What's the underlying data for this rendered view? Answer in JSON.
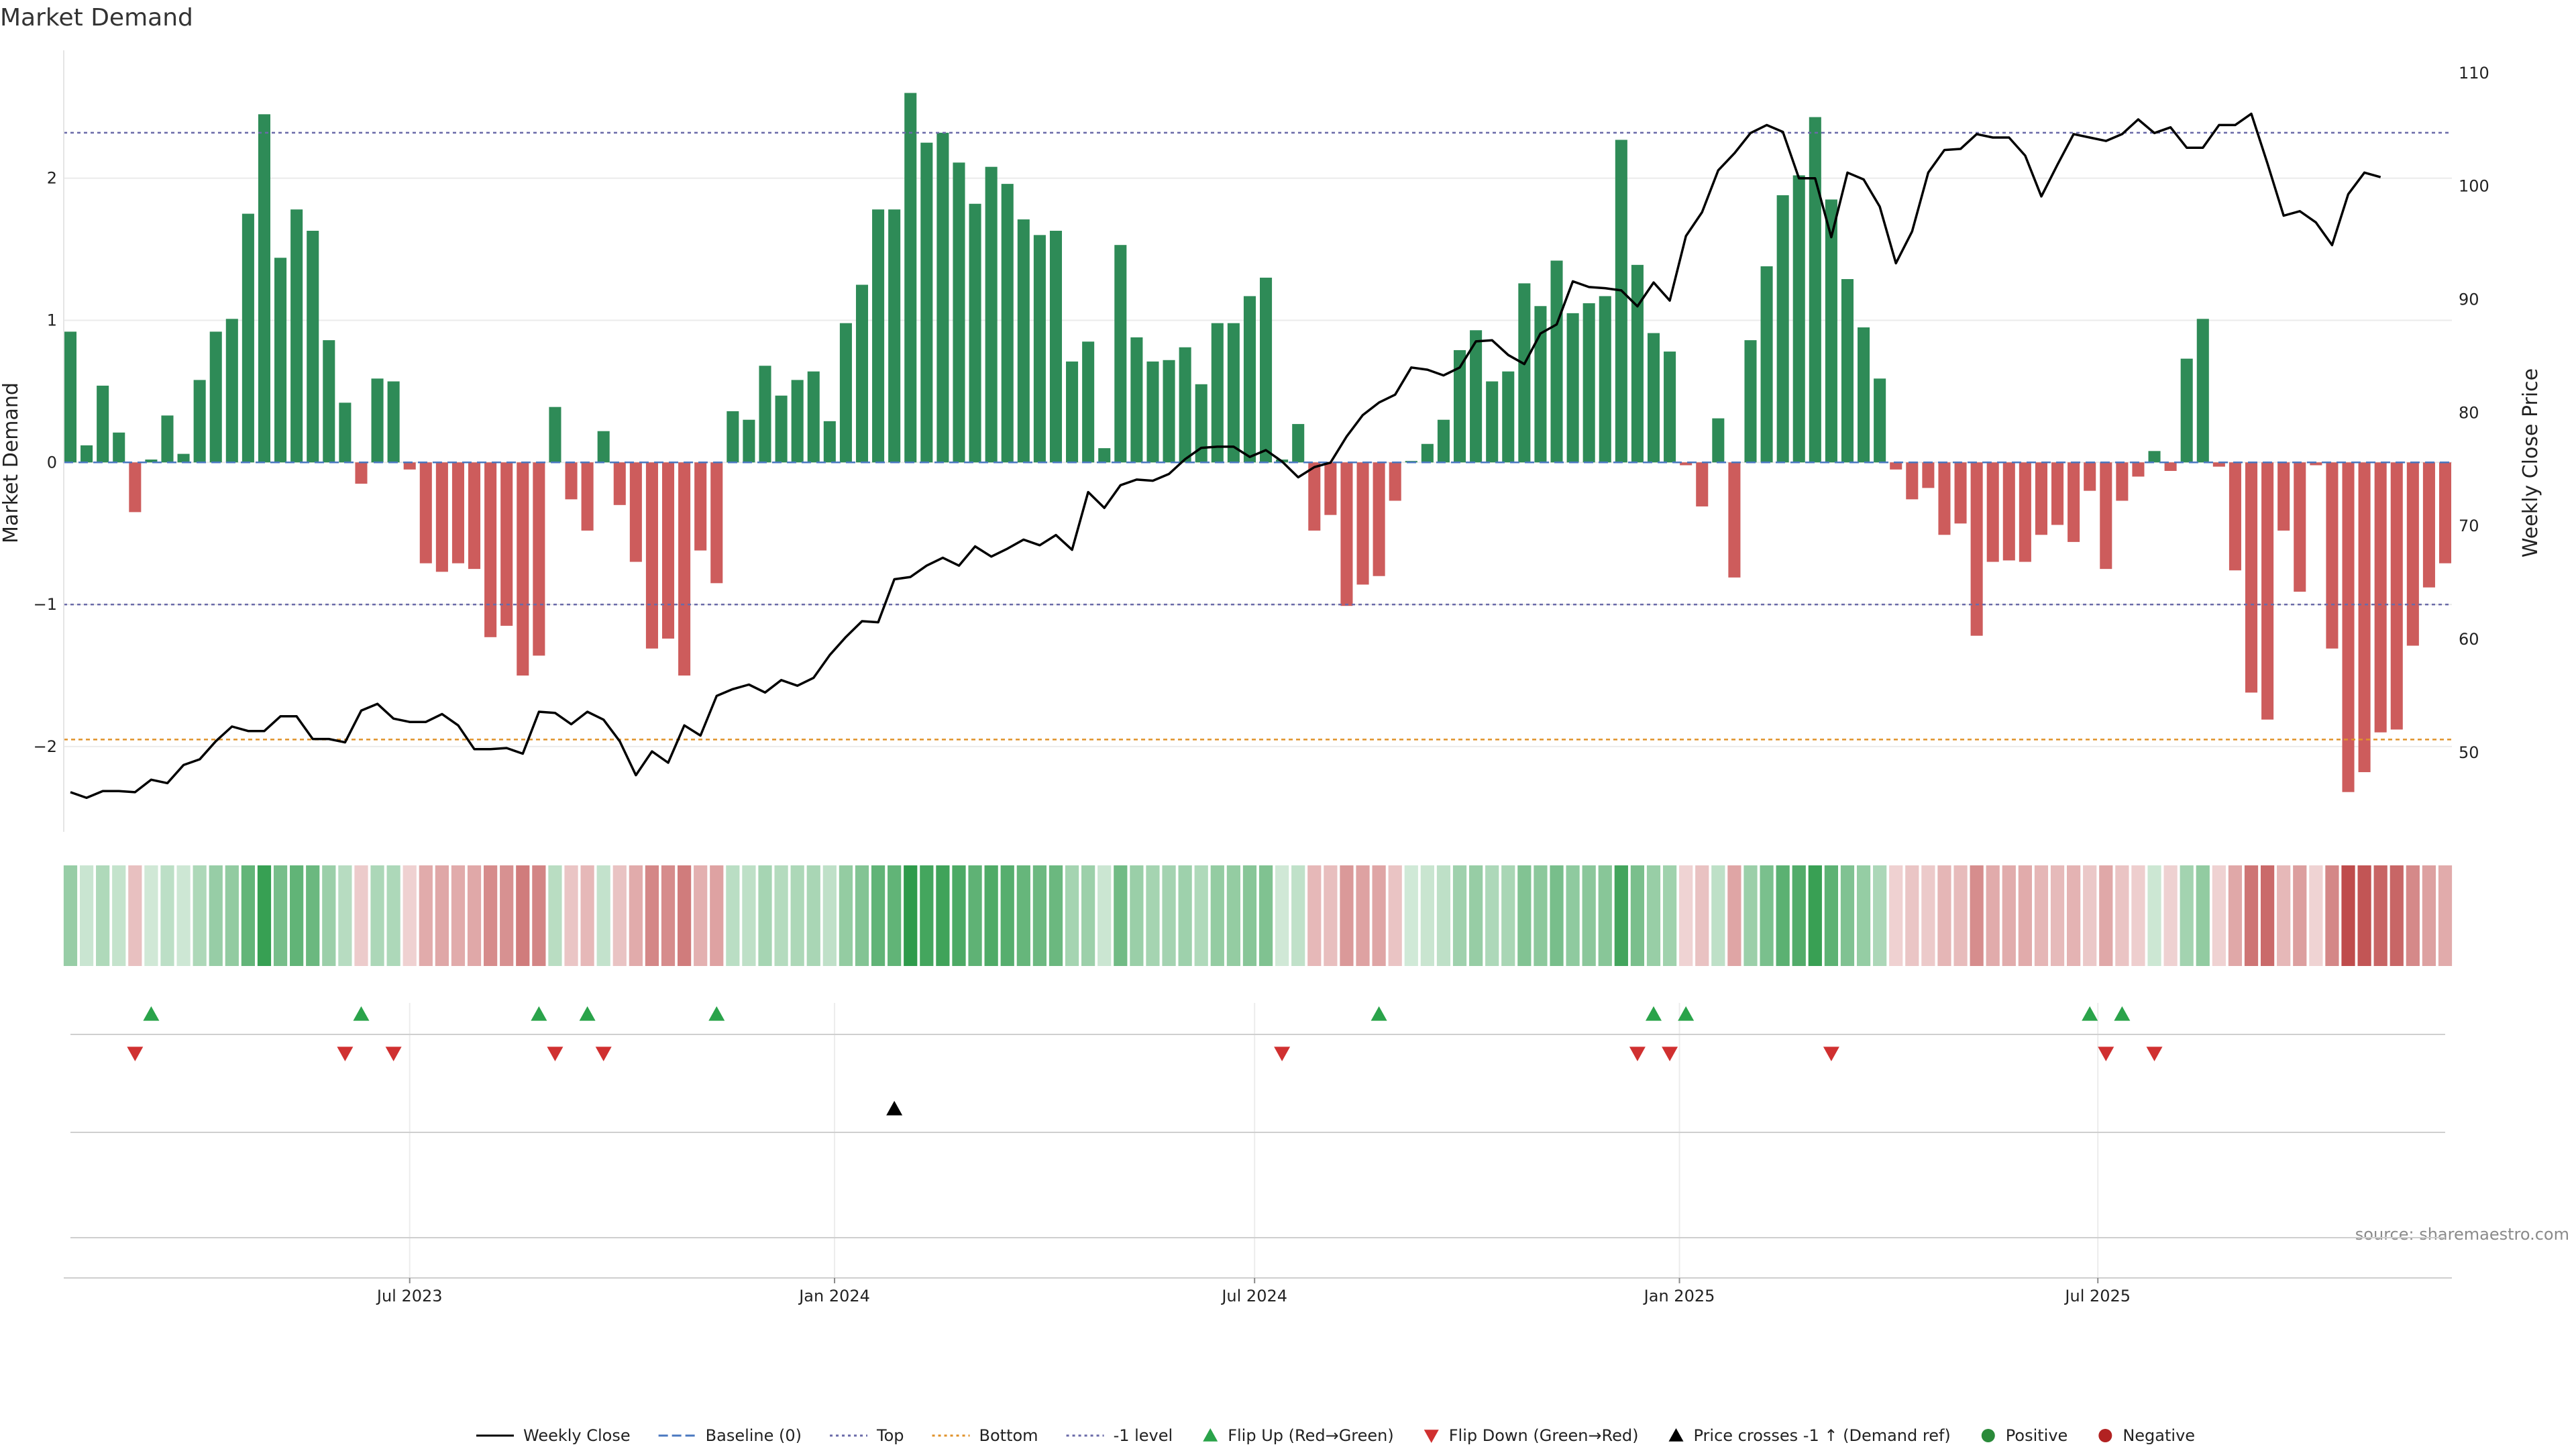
{
  "chart_data": {
    "type": "bar",
    "title": "Market Demand",
    "ylabel_left": "Market Demand",
    "ylabel_right": "Weekly Close Price",
    "ylim_left": [
      -2.6,
      2.9
    ],
    "ylim_right": [
      43,
      112
    ],
    "yticks_left": [
      {
        "value": 2,
        "label": "2"
      },
      {
        "value": 1,
        "label": "1"
      },
      {
        "value": 0,
        "label": "0"
      },
      {
        "value": -1,
        "label": "−1"
      },
      {
        "value": -2,
        "label": "−2"
      }
    ],
    "yticks_right": [
      {
        "value": 110,
        "label": "110"
      },
      {
        "value": 100,
        "label": "100"
      },
      {
        "value": 90,
        "label": "90"
      },
      {
        "value": 80,
        "label": "80"
      },
      {
        "value": 70,
        "label": "70"
      },
      {
        "value": 60,
        "label": "60"
      },
      {
        "value": 50,
        "label": "50"
      }
    ],
    "xticks": [
      {
        "week": 21,
        "label": "Jul 2023"
      },
      {
        "week": 47.3,
        "label": "Jan 2024"
      },
      {
        "week": 73.3,
        "label": "Jul 2024"
      },
      {
        "week": 99.6,
        "label": "Jan 2025"
      },
      {
        "week": 125.5,
        "label": "Jul 2025"
      }
    ],
    "reference_lines": {
      "top": 2.32,
      "bottom": -1.95,
      "minus_one": -1.0,
      "baseline": 0
    },
    "demand": [
      0.92,
      0.12,
      0.54,
      0.21,
      -0.35,
      0.02,
      0.33,
      0.06,
      0.58,
      0.92,
      1.01,
      1.75,
      2.45,
      1.44,
      1.78,
      1.63,
      0.86,
      0.42,
      -0.15,
      0.59,
      0.57,
      -0.05,
      -0.71,
      -0.77,
      -0.71,
      -0.75,
      -1.23,
      -1.15,
      -1.5,
      -1.36,
      0.39,
      -0.26,
      -0.48,
      0.22,
      -0.3,
      -0.7,
      -1.31,
      -1.24,
      -1.5,
      -0.62,
      -0.85,
      0.36,
      0.3,
      0.68,
      0.47,
      0.58,
      0.64,
      0.29,
      0.98,
      1.25,
      1.78,
      1.78,
      2.6,
      2.25,
      2.32,
      2.11,
      1.82,
      2.08,
      1.96,
      1.71,
      1.6,
      1.63,
      0.71,
      0.85,
      0.1,
      1.53,
      0.88,
      0.71,
      0.72,
      0.81,
      0.55,
      0.98,
      0.98,
      1.17,
      1.3,
      0.02,
      0.27,
      -0.48,
      -0.37,
      -1.01,
      -0.86,
      -0.8,
      -0.27,
      0.01,
      0.13,
      0.3,
      0.79,
      0.93,
      0.57,
      0.64,
      1.26,
      1.1,
      1.42,
      1.05,
      1.12,
      1.17,
      2.27,
      1.39,
      0.91,
      0.78,
      -0.02,
      -0.31,
      0.31,
      -0.81,
      0.86,
      1.38,
      1.88,
      2.02,
      2.43,
      1.85,
      1.29,
      0.95,
      0.59,
      -0.05,
      -0.26,
      -0.18,
      -0.51,
      -0.43,
      -1.22,
      -0.7,
      -0.69,
      -0.7,
      -0.51,
      -0.44,
      -0.56,
      -0.2,
      -0.75,
      -0.27,
      -0.1,
      0.08,
      -0.06,
      0.73,
      1.01,
      -0.03,
      -0.76,
      -1.62,
      -1.81,
      -0.48,
      -0.91,
      -0.02,
      -1.31,
      -2.32,
      -2.18,
      -1.9,
      -1.88,
      -1.29,
      -0.88,
      -0.71
    ],
    "price": [
      46.5,
      46.0,
      46.6,
      46.6,
      46.5,
      47.6,
      47.3,
      48.9,
      49.4,
      51.0,
      52.3,
      51.9,
      51.9,
      53.2,
      53.2,
      51.2,
      51.2,
      50.9,
      53.7,
      54.3,
      53.0,
      52.7,
      52.7,
      53.4,
      52.4,
      50.3,
      50.3,
      50.4,
      49.9,
      53.6,
      53.5,
      52.5,
      53.6,
      52.9,
      51.0,
      48.0,
      50.1,
      49.1,
      52.4,
      51.5,
      55.0,
      55.6,
      56.0,
      55.3,
      56.4,
      55.9,
      56.6,
      58.6,
      60.2,
      61.6,
      61.5,
      65.3,
      65.5,
      66.5,
      67.2,
      66.5,
      68.2,
      67.3,
      68.0,
      68.8,
      68.3,
      69.2,
      67.9,
      73.0,
      71.6,
      73.6,
      74.1,
      74.0,
      74.6,
      75.9,
      76.9,
      77.0,
      77.0,
      76.1,
      76.7,
      75.7,
      74.3,
      75.2,
      75.6,
      77.9,
      79.8,
      80.9,
      81.6,
      84.0,
      83.8,
      83.3,
      84.0,
      86.3,
      86.4,
      85.1,
      84.3,
      87.0,
      87.8,
      91.6,
      91.1,
      91.0,
      90.8,
      89.4,
      91.5,
      89.9,
      95.6,
      97.7,
      101.4,
      102.9,
      104.7,
      105.4,
      104.8,
      100.7,
      100.7,
      95.5,
      101.2,
      100.6,
      98.2,
      93.2,
      96.0,
      101.2,
      103.2,
      103.3,
      104.6,
      104.3,
      104.3,
      102.7,
      99.1,
      101.9,
      104.6,
      104.3,
      104.0,
      104.6,
      105.9,
      104.7,
      105.2,
      103.4,
      103.4,
      105.4,
      105.4,
      106.4,
      102.0,
      97.4,
      97.8,
      96.8,
      94.8,
      99.3,
      101.2,
      100.8
    ],
    "flip_up_weeks": [
      5,
      18,
      29,
      32,
      40,
      81,
      98,
      100,
      125,
      127
    ],
    "flip_down_weeks": [
      4,
      17,
      20,
      30,
      33,
      75,
      97,
      99,
      109,
      126,
      129
    ],
    "price_cross_weeks": [
      51
    ],
    "source": "source: sharemaestro.com",
    "legend": [
      {
        "label": "Weekly Close",
        "kind": "line-solid",
        "color": "#000000"
      },
      {
        "label": "Baseline (0)",
        "kind": "line-dashed",
        "color": "#4a78c0"
      },
      {
        "label": "Top",
        "kind": "line-dotted",
        "color": "#6a6aa8"
      },
      {
        "label": "Bottom",
        "kind": "line-dotted",
        "color": "#e0922a"
      },
      {
        "label": "-1 level",
        "kind": "line-dotted",
        "color": "#6a6aa8"
      },
      {
        "label": "Flip Up (Red→Green)",
        "kind": "triangle-up",
        "color": "#2aa34a"
      },
      {
        "label": "Flip Down (Green→Red)",
        "kind": "triangle-down",
        "color": "#d03030"
      },
      {
        "label": "Price crosses -1 ↑ (Demand ref)",
        "kind": "triangle-up",
        "color": "#000000"
      },
      {
        "label": "Positive",
        "kind": "circle",
        "color": "#2a8a3a"
      },
      {
        "label": "Negative",
        "kind": "circle",
        "color": "#b22222"
      }
    ],
    "colors": {
      "positive_bar": "#2e8b57",
      "negative_bar": "#cd5c5c",
      "price_line": "#000000"
    }
  }
}
